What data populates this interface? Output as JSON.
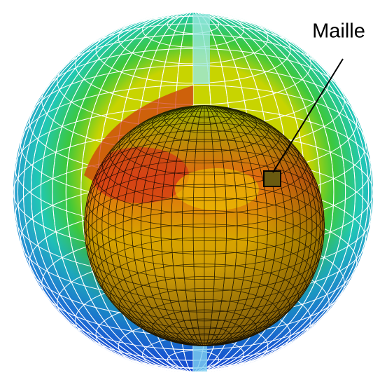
{
  "label": "Maille"
}
